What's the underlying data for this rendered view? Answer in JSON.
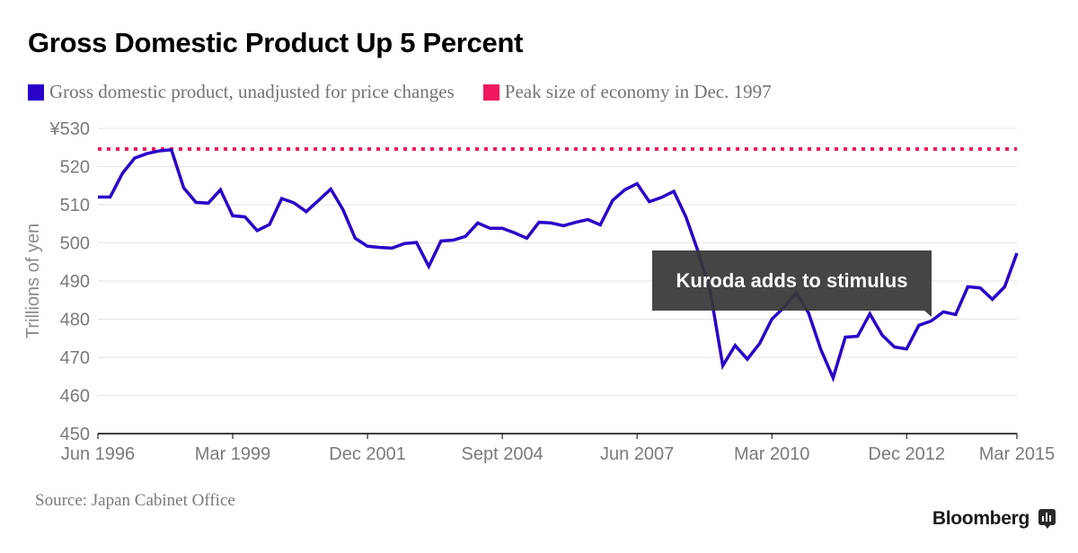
{
  "title": "Gross Domestic Product Up 5 Percent",
  "legend": [
    {
      "label": "Gross domestic product, unadjusted for price changes",
      "color": "#2a00c8",
      "icon": "square-swatch"
    },
    {
      "label": "Peak size of economy in Dec. 1997",
      "color": "#f0185f",
      "icon": "square-swatch"
    }
  ],
  "source": "Source: Japan Cabinet Office",
  "brand": {
    "name": "Bloomberg",
    "icon": "bloomberg-bar-chart-icon"
  },
  "annotation": {
    "text": "Kuroda adds to stimulus",
    "anchor_x": "Dec 2013"
  },
  "chart_data": {
    "type": "line",
    "title": "Gross Domestic Product Up 5 Percent",
    "xlabel": "",
    "ylabel": "Trillions of yen",
    "ylim": [
      450,
      530
    ],
    "y_ticks": [
      450,
      460,
      470,
      480,
      490,
      500,
      510,
      520,
      530
    ],
    "y_tick_labels": [
      "450",
      "460",
      "470",
      "480",
      "490",
      "500",
      "510",
      "520",
      "¥530"
    ],
    "x_tick_labels": [
      "Jun 1996",
      "Mar 1999",
      "Dec 2001",
      "Sept 2004",
      "Jun 2007",
      "Mar 2010",
      "Dec 2012",
      "Mar 2015"
    ],
    "x_tick_quarter_index": [
      0,
      11,
      22,
      33,
      44,
      55,
      66,
      75
    ],
    "grid": true,
    "legend_position": "top-left",
    "x_start": "Jun 1996",
    "x_end": "Mar 2015",
    "x_frequency": "quarterly",
    "series": [
      {
        "name": "Gross domestic product, unadjusted for price changes",
        "color": "#2a00c8",
        "style": "solid",
        "values": [
          512.0,
          512.0,
          518.2,
          522.2,
          523.4,
          524.1,
          524.4,
          514.4,
          510.6,
          510.4,
          513.9,
          507.1,
          506.8,
          503.2,
          504.8,
          511.6,
          510.5,
          508.2,
          511.1,
          514.1,
          508.7,
          501.2,
          499.1,
          498.8,
          498.6,
          499.8,
          500.1,
          493.8,
          500.5,
          500.7,
          501.7,
          505.2,
          503.8,
          503.8,
          502.6,
          501.2,
          505.4,
          505.2,
          504.5,
          505.4,
          506.1,
          504.7,
          511.1,
          513.9,
          515.5,
          510.8,
          511.9,
          513.5,
          506.7,
          497.5,
          486.8,
          467.8,
          473.1,
          469.5,
          473.6,
          480.0,
          483.1,
          487.0,
          481.6,
          472.0,
          464.6,
          475.3,
          475.5,
          481.4,
          475.8,
          472.7,
          472.2,
          478.4,
          479.5,
          481.9,
          481.2,
          488.5,
          488.2,
          485.2,
          488.5,
          497.3
        ]
      },
      {
        "name": "Peak size of economy in Dec. 1997",
        "color": "#f0185f",
        "style": "dotted",
        "constant": 524.6
      }
    ]
  }
}
